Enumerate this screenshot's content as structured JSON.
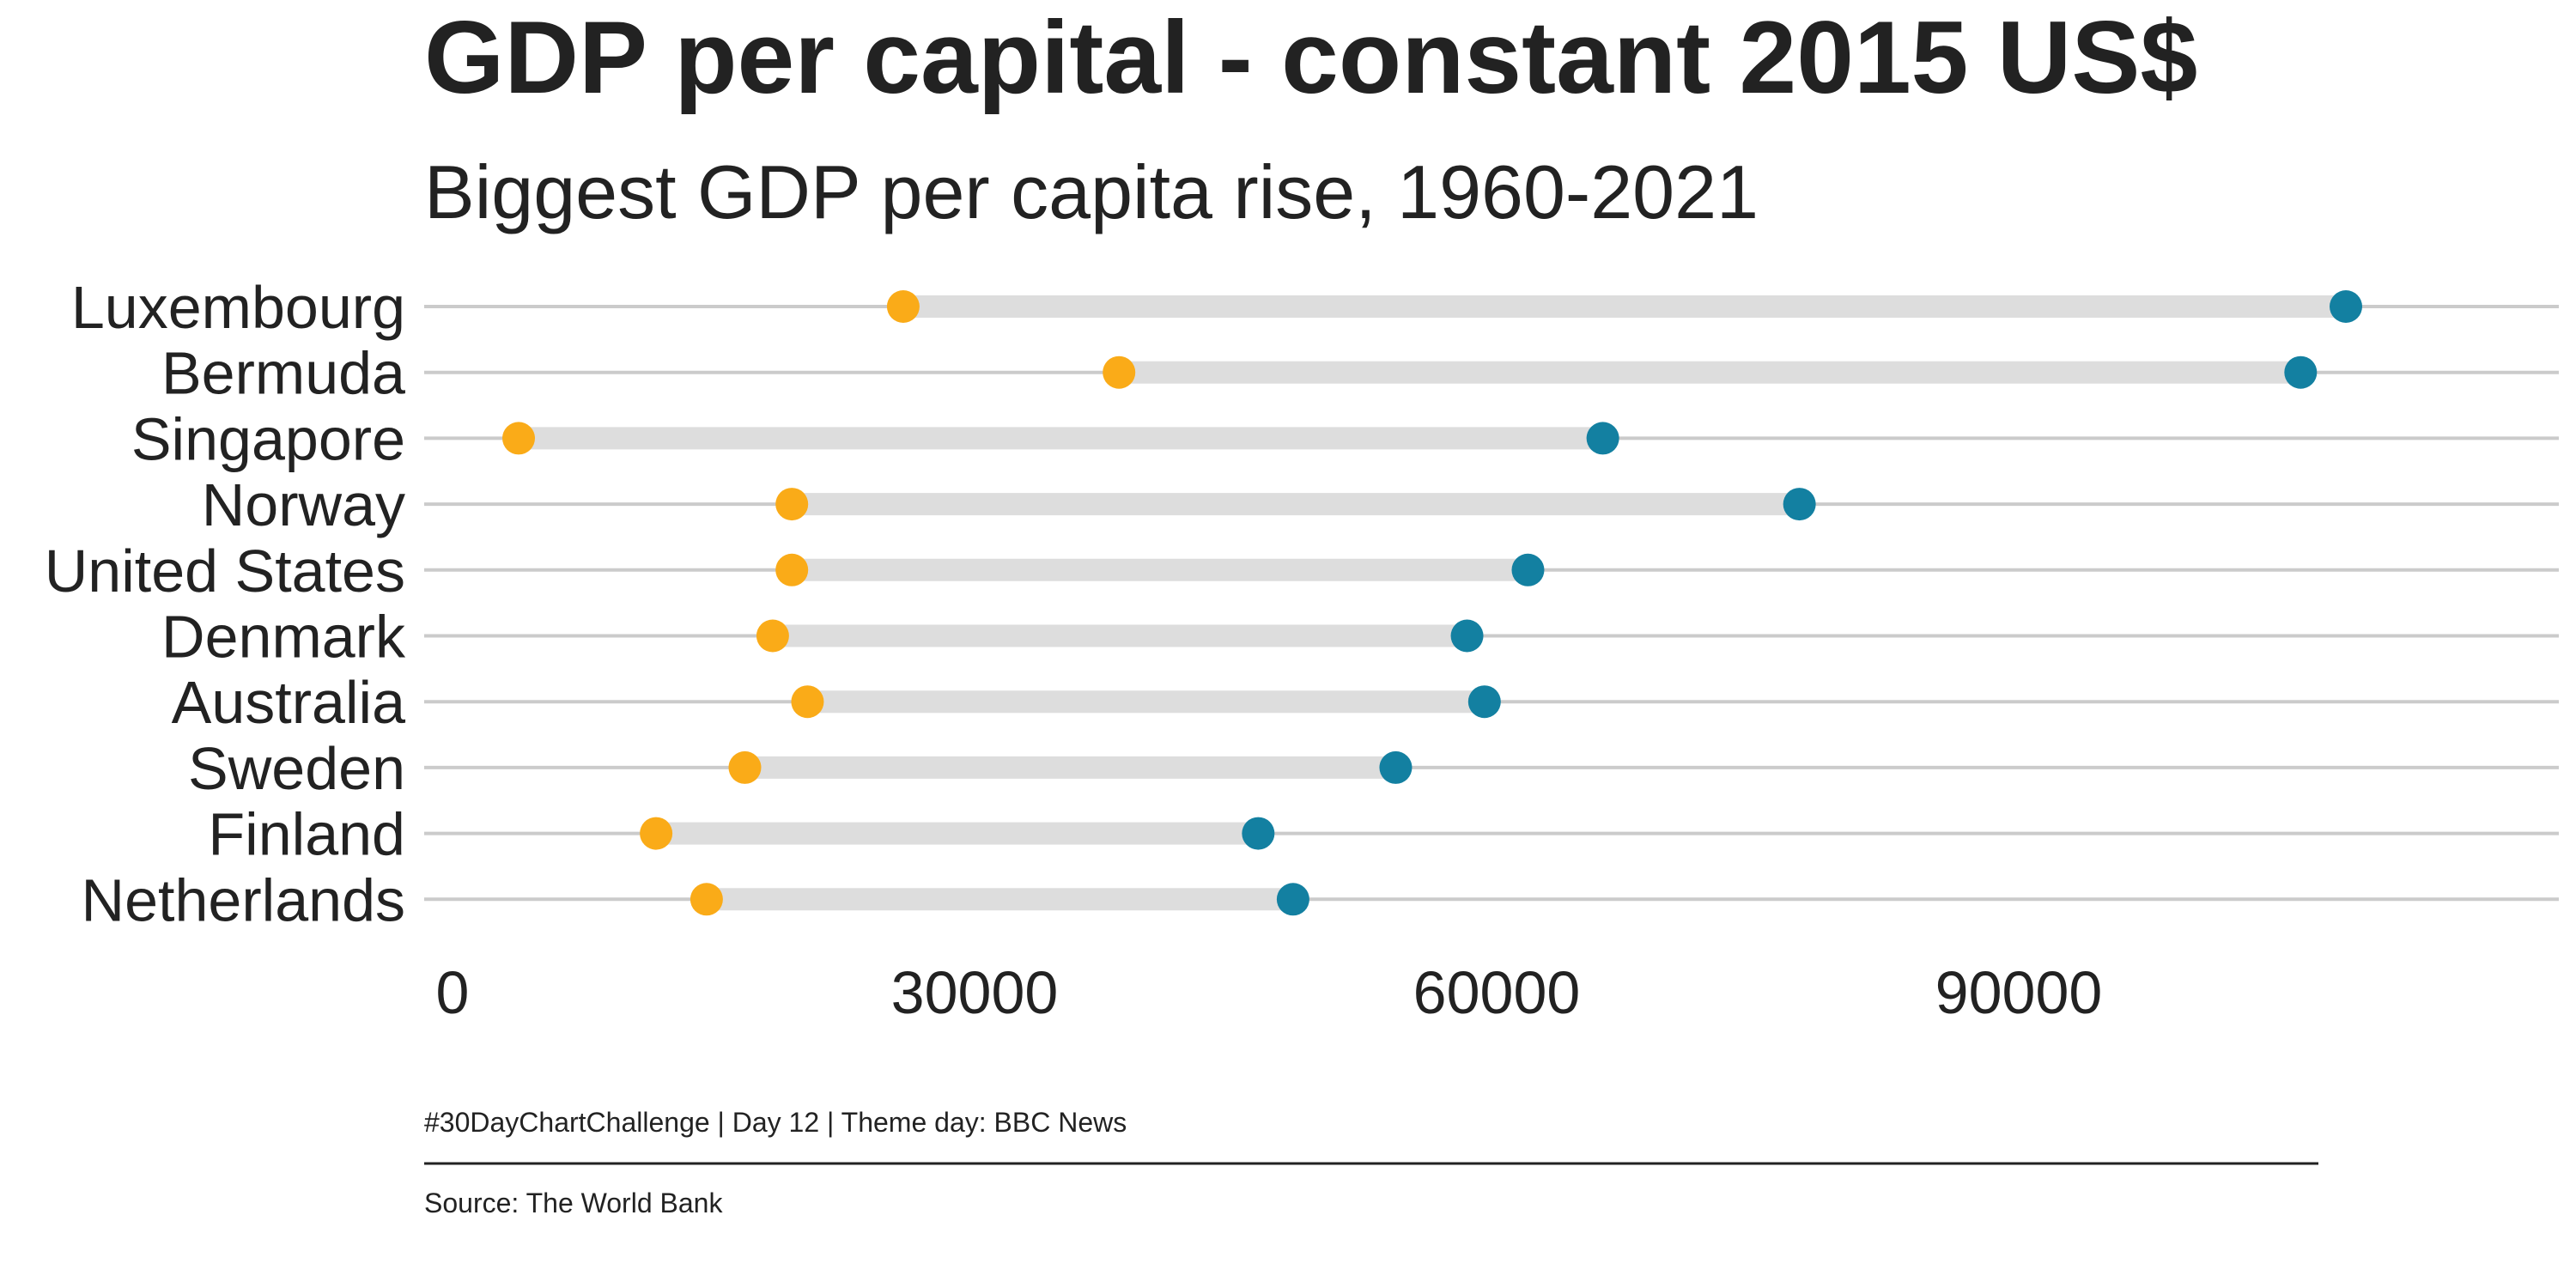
{
  "chart_data": {
    "type": "dumbbell",
    "title": "GDP per capital - constant 2015 US$",
    "subtitle": "Biggest GDP per capita rise, 1960-2021",
    "xlim": [
      0,
      114000
    ],
    "xticks": [
      "0",
      "30000",
      "60000",
      "90000"
    ],
    "xtick_values": [
      0,
      30000,
      60000,
      90000
    ],
    "grid": "horizontal",
    "colors": {
      "start": "#FAAB18",
      "end": "#1380A1",
      "segment": "#DDDDDD",
      "gridline": "#CBCBCB",
      "text": "#222222"
    },
    "categories": [
      "Luxembourg",
      "Bermuda",
      "Singapore",
      "Norway",
      "United States",
      "Denmark",
      "Australia",
      "Sweden",
      "Finland",
      "Netherlands"
    ],
    "series": [
      {
        "values": [
          25900,
          38300,
          3800,
          19500,
          19500,
          18400,
          20400,
          16800,
          11700,
          14600
        ]
      },
      {
        "values": [
          108800,
          106200,
          66100,
          77400,
          61800,
          58300,
          59300,
          54200,
          46300,
          48300
        ]
      }
    ]
  },
  "footer": {
    "challenge": "#30DayChartChallenge | Day 12 | Theme day: BBC News",
    "source": "Source: The World Bank"
  }
}
